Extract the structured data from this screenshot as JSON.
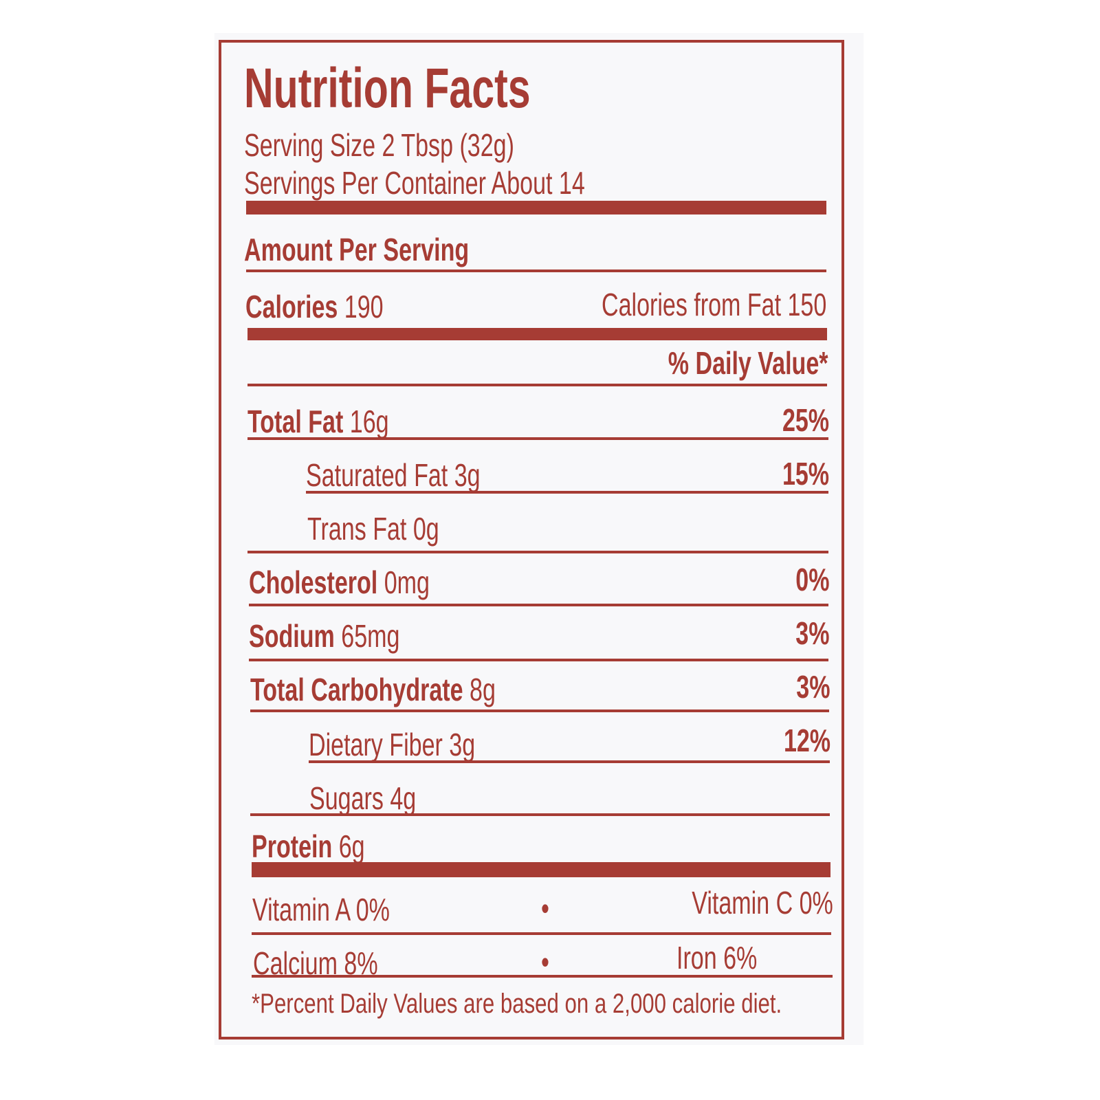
{
  "title": "Nutrition Facts",
  "serving_size": "Serving Size 2 Tbsp (32g)",
  "servings_per_container": "Servings Per Container About 14",
  "amount_per_serving": "Amount Per Serving",
  "calories": {
    "label": "Calories",
    "value": "190",
    "from_fat": "Calories from Fat 150"
  },
  "daily_value_header": "% Daily Value*",
  "nutrients": [
    {
      "label": "Total Fat",
      "amount": "16g",
      "dv": "25%"
    },
    {
      "label": "Saturated Fat",
      "amount": "3g",
      "dv": "15%"
    },
    {
      "label": "Trans Fat",
      "amount": "0g",
      "dv": ""
    },
    {
      "label": "Cholesterol",
      "amount": "0mg",
      "dv": "0%"
    },
    {
      "label": "Sodium",
      "amount": "65mg",
      "dv": "3%"
    },
    {
      "label": "Total Carbohydrate",
      "amount": "8g",
      "dv": "3%"
    },
    {
      "label": "Dietary Fiber",
      "amount": "3g",
      "dv": "12%"
    },
    {
      "label": "Sugars",
      "amount": "4g",
      "dv": ""
    },
    {
      "label": "Protein",
      "amount": "6g",
      "dv": ""
    }
  ],
  "vitamins": [
    {
      "left": "Vitamin A 0%",
      "right": "Vitamin C 0%"
    },
    {
      "left": "Calcium 8%",
      "right": "Iron 6%"
    }
  ],
  "bullet": "•",
  "footnote": "*Percent Daily Values are based on a 2,000 calorie diet.",
  "colors": {
    "ink": "#a63c34",
    "background": "#f8f8fa"
  }
}
